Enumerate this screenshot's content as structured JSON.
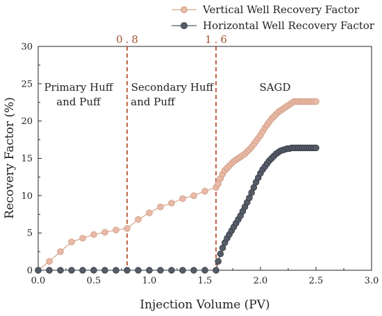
{
  "chart_data": {
    "type": "line",
    "title": "",
    "xlabel": "Injection Volume (PV)",
    "ylabel": "Recovery Factor (%)",
    "xlim": [
      0.0,
      3.0
    ],
    "ylim": [
      0,
      30
    ],
    "x_ticks": [
      "0.0",
      "0.5",
      "1.0",
      "1.5",
      "2.0",
      "2.5",
      "3.0"
    ],
    "y_ticks": [
      "0",
      "5",
      "10",
      "15",
      "20",
      "25",
      "30"
    ],
    "grid": false,
    "legend_position": "top-right",
    "vlines": [
      {
        "x": 0.8,
        "label": "0.8"
      },
      {
        "x": 1.6,
        "label": "1.6"
      }
    ],
    "regions": [
      {
        "label_lines": [
          "Primary Huff",
          "and Puff"
        ]
      },
      {
        "label_lines": [
          "Secondary Huff",
          "and Puff"
        ]
      },
      {
        "label_lines": [
          "SAGD"
        ]
      }
    ],
    "series": [
      {
        "name": "Vertical Well Recovery Factor",
        "color": "#d9a98c",
        "x": [
          0.0,
          0.1,
          0.2,
          0.3,
          0.4,
          0.5,
          0.6,
          0.7,
          0.8,
          0.9,
          1.0,
          1.1,
          1.2,
          1.3,
          1.4,
          1.5,
          1.6,
          1.62,
          1.64,
          1.66,
          1.68,
          1.7,
          1.72,
          1.74,
          1.76,
          1.78,
          1.8,
          1.82,
          1.84,
          1.86,
          1.88,
          1.9,
          1.92,
          1.94,
          1.96,
          1.98,
          2.0,
          2.02,
          2.04,
          2.06,
          2.08,
          2.1,
          2.12,
          2.14,
          2.16,
          2.18,
          2.2,
          2.22,
          2.24,
          2.26,
          2.28,
          2.3,
          2.32,
          2.34,
          2.36,
          2.38,
          2.4,
          2.42,
          2.44,
          2.46,
          2.48,
          2.5
        ],
        "y": [
          0.0,
          1.2,
          2.5,
          3.8,
          4.3,
          4.8,
          5.1,
          5.4,
          5.6,
          6.8,
          7.7,
          8.5,
          9.0,
          9.6,
          10.0,
          10.6,
          11.1,
          11.6,
          12.3,
          12.9,
          13.4,
          13.7,
          14.0,
          14.3,
          14.6,
          14.8,
          15.0,
          15.2,
          15.4,
          15.6,
          15.9,
          16.2,
          16.5,
          16.9,
          17.3,
          17.7,
          18.1,
          18.6,
          19.1,
          19.5,
          19.9,
          20.3,
          20.6,
          20.9,
          21.2,
          21.4,
          21.6,
          21.8,
          22.0,
          22.2,
          22.4,
          22.6,
          22.6,
          22.6,
          22.6,
          22.6,
          22.6,
          22.6,
          22.6,
          22.6,
          22.6,
          22.6
        ]
      },
      {
        "name": "Horizontal Well Recovery Factor",
        "color": "#4f5662",
        "x": [
          0.0,
          0.1,
          0.2,
          0.3,
          0.4,
          0.5,
          0.6,
          0.7,
          0.8,
          0.9,
          1.0,
          1.1,
          1.2,
          1.3,
          1.4,
          1.5,
          1.6,
          1.62,
          1.64,
          1.66,
          1.68,
          1.7,
          1.72,
          1.74,
          1.76,
          1.78,
          1.8,
          1.82,
          1.84,
          1.86,
          1.88,
          1.9,
          1.92,
          1.94,
          1.96,
          1.98,
          2.0,
          2.02,
          2.04,
          2.06,
          2.08,
          2.1,
          2.12,
          2.14,
          2.16,
          2.18,
          2.2,
          2.22,
          2.24,
          2.26,
          2.28,
          2.3,
          2.32,
          2.34,
          2.36,
          2.38,
          2.4,
          2.42,
          2.44,
          2.46,
          2.48,
          2.5
        ],
        "y": [
          0.0,
          0.0,
          0.0,
          0.0,
          0.0,
          0.0,
          0.0,
          0.0,
          0.0,
          0.0,
          0.0,
          0.0,
          0.0,
          0.0,
          0.0,
          0.0,
          0.0,
          1.2,
          2.2,
          3.0,
          3.7,
          4.3,
          4.8,
          5.3,
          5.8,
          6.3,
          6.8,
          7.3,
          7.9,
          8.5,
          9.1,
          9.7,
          10.4,
          11.1,
          11.8,
          12.4,
          13.0,
          13.5,
          13.9,
          14.3,
          14.7,
          15.0,
          15.3,
          15.6,
          15.8,
          16.0,
          16.1,
          16.2,
          16.3,
          16.3,
          16.4,
          16.4,
          16.4,
          16.4,
          16.4,
          16.4,
          16.4,
          16.4,
          16.4,
          16.4,
          16.4,
          16.4
        ]
      }
    ]
  }
}
